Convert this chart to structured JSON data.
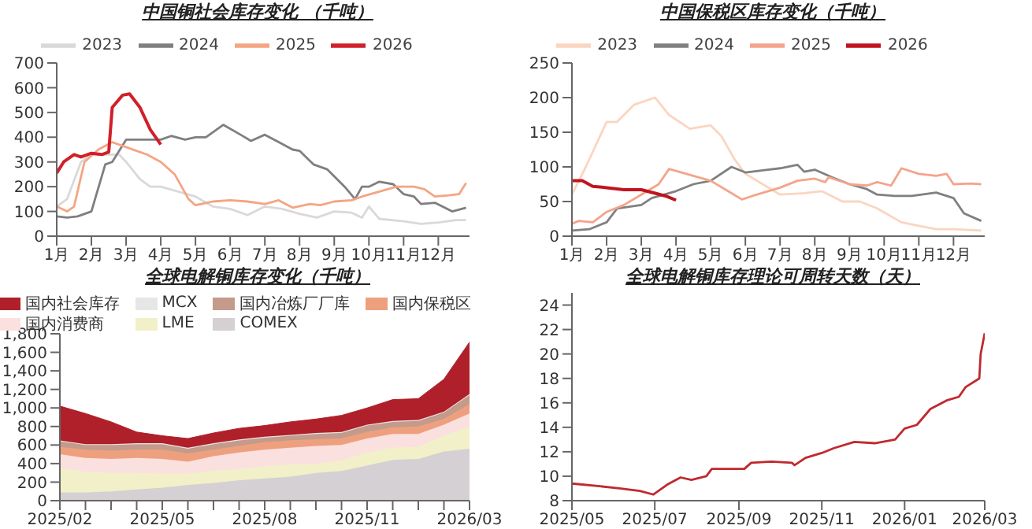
{
  "chart_data": [
    {
      "type": "line",
      "title": "中国铜社会库存变化 （千吨）",
      "legend": "top",
      "marker": "none",
      "line_style": "solid",
      "xlim": [
        1,
        12.9
      ],
      "ylim": [
        0,
        700
      ],
      "yticks": [
        0,
        100,
        200,
        300,
        400,
        500,
        600,
        700
      ],
      "xticks": [
        {
          "value": 1,
          "label": "1月"
        },
        {
          "value": 2,
          "label": "2月"
        },
        {
          "value": 3,
          "label": "3月"
        },
        {
          "value": 4,
          "label": "4月"
        },
        {
          "value": 5,
          "label": "5月"
        },
        {
          "value": 6,
          "label": "6月"
        },
        {
          "value": 7,
          "label": "7月"
        },
        {
          "value": 8,
          "label": "8月"
        },
        {
          "value": 9,
          "label": "9月"
        },
        {
          "value": 10,
          "label": "10月"
        },
        {
          "value": 11,
          "label": "11月"
        },
        {
          "value": 12,
          "label": "12月"
        }
      ],
      "series": [
        {
          "name": "2023",
          "color": "#d9d9d9",
          "x": [
            1,
            1.3,
            1.7,
            2,
            2.4,
            2.8,
            3,
            3.4,
            3.7,
            4,
            4.5,
            5,
            5.5,
            6,
            6.5,
            7,
            7.5,
            8,
            8.5,
            9,
            9.5,
            9.8,
            10,
            10.3,
            11,
            11.5,
            12,
            12.5,
            12.8
          ],
          "values": [
            120,
            150,
            300,
            330,
            330,
            330,
            300,
            230,
            200,
            200,
            180,
            160,
            120,
            110,
            85,
            120,
            110,
            90,
            75,
            100,
            95,
            75,
            120,
            70,
            60,
            50,
            55,
            65,
            65
          ]
        },
        {
          "name": "2024",
          "color": "#7f7f7f",
          "x": [
            1,
            1.3,
            1.6,
            2,
            2.4,
            2.6,
            3,
            3.5,
            4,
            4.3,
            4.7,
            5,
            5.3,
            5.8,
            6.3,
            6.6,
            7,
            7.4,
            7.8,
            8,
            8.4,
            8.8,
            9.3,
            9.6,
            9.8,
            10,
            10.3,
            10.7,
            11,
            11.3,
            11.5,
            11.9,
            12.4,
            12.8
          ],
          "values": [
            80,
            75,
            80,
            100,
            290,
            300,
            390,
            390,
            390,
            405,
            390,
            400,
            400,
            450,
            410,
            385,
            410,
            380,
            350,
            345,
            290,
            270,
            200,
            150,
            200,
            200,
            220,
            210,
            170,
            160,
            130,
            135,
            100,
            115
          ]
        },
        {
          "name": "2025",
          "color": "#f4a582",
          "x": [
            1,
            1.3,
            1.5,
            1.8,
            2.2,
            2.6,
            2.8,
            3.3,
            3.6,
            4,
            4.4,
            4.8,
            5,
            5.5,
            6,
            6.5,
            7,
            7.4,
            7.8,
            8.3,
            8.6,
            9,
            9.5,
            9.8,
            10.3,
            10.8,
            11.3,
            11.6,
            11.9,
            12.3,
            12.6,
            12.8
          ],
          "values": [
            120,
            100,
            120,
            300,
            350,
            380,
            370,
            345,
            330,
            300,
            250,
            150,
            125,
            140,
            145,
            140,
            130,
            145,
            115,
            130,
            125,
            140,
            145,
            160,
            180,
            200,
            200,
            190,
            160,
            165,
            170,
            215
          ]
        },
        {
          "name": "2026",
          "color": "#d0202a",
          "x": [
            1,
            1.2,
            1.5,
            1.7,
            2,
            2.3,
            2.5,
            2.6,
            2.9,
            3.1,
            3.4,
            3.7,
            4
          ],
          "values": [
            255,
            300,
            330,
            320,
            335,
            330,
            340,
            520,
            570,
            575,
            520,
            430,
            370
          ]
        }
      ]
    },
    {
      "type": "line",
      "title": "中国保税区库存变化（千吨）",
      "legend": "top",
      "marker": "none",
      "line_style": "solid",
      "xlim": [
        1,
        12.9
      ],
      "ylim": [
        0,
        250
      ],
      "yticks": [
        0,
        50,
        100,
        150,
        200,
        250
      ],
      "xticks": [
        {
          "value": 1,
          "label": "1月"
        },
        {
          "value": 2,
          "label": "2月"
        },
        {
          "value": 3,
          "label": "3月"
        },
        {
          "value": 4,
          "label": "4月"
        },
        {
          "value": 5,
          "label": "5月"
        },
        {
          "value": 6,
          "label": "6月"
        },
        {
          "value": 7,
          "label": "7月"
        },
        {
          "value": 8,
          "label": "8月"
        },
        {
          "value": 9,
          "label": "9月"
        },
        {
          "value": 10,
          "label": "10月"
        },
        {
          "value": 11,
          "label": "11月"
        },
        {
          "value": 12,
          "label": "12月"
        }
      ],
      "series": [
        {
          "name": "2023",
          "color": "#fbd5c0",
          "x": [
            1,
            1.4,
            2,
            2.3,
            2.8,
            3.4,
            3.8,
            4.4,
            5,
            5.3,
            5.7,
            6,
            6.5,
            7,
            7.7,
            8.2,
            8.8,
            9.3,
            9.8,
            10.5,
            11,
            11.5,
            12,
            12.8
          ],
          "values": [
            60,
            100,
            165,
            165,
            190,
            200,
            175,
            155,
            160,
            145,
            110,
            90,
            75,
            60,
            62,
            65,
            50,
            50,
            40,
            20,
            15,
            10,
            10,
            8
          ]
        },
        {
          "name": "2024",
          "color": "#808080",
          "x": [
            1,
            1.5,
            2,
            2.3,
            3,
            3.3,
            3.8,
            4,
            4.5,
            5,
            5.6,
            6,
            6.5,
            7,
            7.5,
            7.7,
            8,
            8.5,
            9,
            9.5,
            9.8,
            10.3,
            10.8,
            11.5,
            12,
            12.3,
            12.8
          ],
          "values": [
            8,
            10,
            20,
            40,
            45,
            55,
            62,
            65,
            75,
            80,
            100,
            92,
            95,
            98,
            103,
            93,
            96,
            85,
            75,
            68,
            60,
            58,
            58,
            63,
            55,
            33,
            22
          ]
        },
        {
          "name": "2025",
          "color": "#f4a48a",
          "x": [
            1,
            1.2,
            1.6,
            2,
            2.5,
            3,
            3.5,
            3.8,
            4.3,
            5,
            5.5,
            5.9,
            6.2,
            7,
            7.5,
            8,
            8.3,
            8.4,
            9,
            9.5,
            9.8,
            10.2,
            10.5,
            11,
            11.5,
            11.8,
            12,
            12.5,
            12.8
          ],
          "values": [
            18,
            22,
            20,
            35,
            45,
            60,
            75,
            97,
            90,
            80,
            65,
            53,
            58,
            70,
            80,
            83,
            78,
            85,
            75,
            73,
            78,
            73,
            98,
            90,
            87,
            90,
            75,
            76,
            75
          ]
        },
        {
          "name": "2026",
          "color": "#c0141e",
          "x": [
            1,
            1.3,
            1.6,
            2,
            2.5,
            3,
            3.4,
            3.7,
            4
          ],
          "values": [
            80,
            80,
            72,
            70,
            67,
            67,
            62,
            58,
            52
          ]
        }
      ]
    },
    {
      "type": "area",
      "title": "全球电解铜库存变化（千吨）",
      "legend": "top",
      "stacked": true,
      "ylim": [
        0,
        1800
      ],
      "yticks": [
        0,
        200,
        400,
        600,
        800,
        {
          "value": 1000,
          "label": "1,000"
        },
        {
          "value": 1200,
          "label": "1,200"
        },
        {
          "value": 1400,
          "label": "1,400"
        },
        {
          "value": 1600,
          "label": "1,600"
        },
        {
          "value": 1800,
          "label": "1,800"
        }
      ],
      "categories": [
        "2025/02",
        null,
        null,
        null,
        "2025/05",
        null,
        null,
        null,
        "2025/08",
        null,
        null,
        null,
        "2025/11",
        null,
        null,
        null,
        "2026/03"
      ],
      "series": [
        {
          "name": "COMEX",
          "color": "#d5d0d3",
          "values": [
            90,
            90,
            100,
            120,
            140,
            170,
            190,
            220,
            240,
            260,
            300,
            320,
            380,
            440,
            450,
            530,
            560
          ]
        },
        {
          "name": "LME",
          "color": "#f2f0c8",
          "values": [
            260,
            220,
            200,
            180,
            150,
            120,
            130,
            120,
            130,
            130,
            100,
            110,
            140,
            130,
            130,
            170,
            240
          ]
        },
        {
          "name": "国内消费商",
          "color": "#fbe0e0",
          "values": [
            150,
            150,
            150,
            160,
            160,
            130,
            160,
            180,
            180,
            180,
            190,
            170,
            150,
            150,
            140,
            120,
            140
          ]
        },
        {
          "name": "国内保税区",
          "color": "#eea07e",
          "values": [
            80,
            90,
            90,
            90,
            100,
            90,
            70,
            70,
            80,
            80,
            70,
            70,
            70,
            70,
            80,
            60,
            100
          ]
        },
        {
          "name": "国内冶炼厂厂库",
          "color": "#c49a8a",
          "values": [
            60,
            50,
            60,
            60,
            60,
            50,
            60,
            60,
            50,
            50,
            60,
            60,
            70,
            60,
            60,
            70,
            100
          ]
        },
        {
          "name": "MCX",
          "color": "#e6e6e6",
          "values": [
            10,
            10,
            10,
            10,
            10,
            10,
            10,
            10,
            10,
            10,
            10,
            10,
            10,
            10,
            10,
            10,
            10
          ]
        },
        {
          "name": "国内社会库存",
          "color": "#b0202a",
          "values": [
            370,
            330,
            240,
            120,
            80,
            100,
            110,
            120,
            120,
            140,
            150,
            180,
            180,
            230,
            230,
            350,
            560
          ]
        }
      ]
    },
    {
      "type": "line",
      "title": "全球电解铜库存理论可周转天数（天）",
      "marker": "none",
      "line_style": "solid",
      "ylim": [
        8,
        25
      ],
      "yticks": [
        8,
        10,
        12,
        14,
        16,
        18,
        20,
        22,
        24
      ],
      "xlim": [
        "2025-05-01",
        "2026-03-01"
      ],
      "xticks": [
        {
          "value": "2025-05-01",
          "label": "2025/05"
        },
        {
          "value": "2025-07-01",
          "label": "2025/07"
        },
        {
          "value": "2025-09-01",
          "label": "2025/09"
        },
        {
          "value": "2025-11-01",
          "label": "2025/11"
        },
        {
          "value": "2026-01-01",
          "label": "2026/01"
        },
        {
          "value": "2026-03-01",
          "label": "2026/03"
        }
      ],
      "series": [
        {
          "color": "#c0292f",
          "x": [
            "2025-05-01",
            "2025-05-20",
            "2025-06-05",
            "2025-06-20",
            "2025-06-30",
            "2025-07-10",
            "2025-07-20",
            "2025-07-28",
            "2025-08-08",
            "2025-08-12",
            "2025-08-25",
            "2025-09-05",
            "2025-09-10",
            "2025-09-25",
            "2025-10-10",
            "2025-10-12",
            "2025-10-20",
            "2025-11-01",
            "2025-11-10",
            "2025-11-25",
            "2025-12-10",
            "2025-12-25",
            "2026-01-01",
            "2026-01-10",
            "2026-01-20",
            "2026-02-01",
            "2026-02-10",
            "2026-02-15",
            "2026-02-25",
            "2026-02-26",
            "2026-03-01"
          ],
          "values": [
            9.4,
            9.2,
            9.0,
            8.8,
            8.5,
            9.3,
            9.9,
            9.7,
            10.0,
            10.6,
            10.6,
            10.6,
            11.1,
            11.2,
            11.1,
            10.9,
            11.5,
            11.9,
            12.3,
            12.8,
            12.7,
            13.0,
            13.9,
            14.2,
            15.5,
            16.2,
            16.5,
            17.3,
            18.0,
            20.0,
            21.7
          ]
        }
      ]
    }
  ]
}
